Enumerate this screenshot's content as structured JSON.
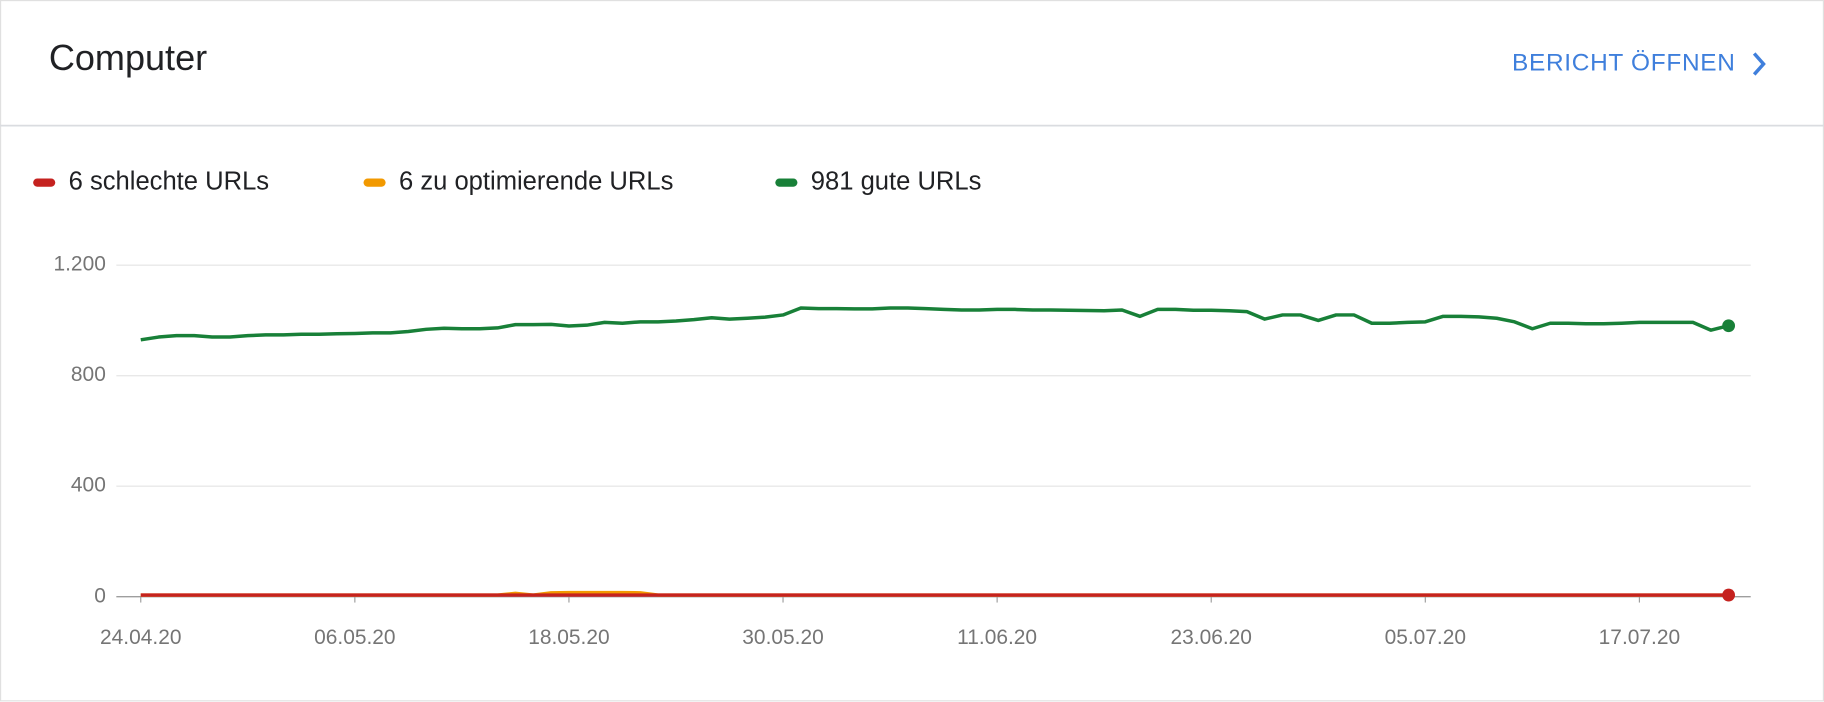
{
  "header": {
    "title": "Computer",
    "link": "BERICHT ÖFFNEN"
  },
  "chart_data": {
    "type": "line",
    "x": [
      "2020-04-24",
      "2020-04-25",
      "2020-04-26",
      "2020-04-27",
      "2020-04-28",
      "2020-04-29",
      "2020-04-30",
      "2020-05-01",
      "2020-05-02",
      "2020-05-03",
      "2020-05-04",
      "2020-05-05",
      "2020-05-06",
      "2020-05-07",
      "2020-05-08",
      "2020-05-09",
      "2020-05-10",
      "2020-05-11",
      "2020-05-12",
      "2020-05-13",
      "2020-05-14",
      "2020-05-15",
      "2020-05-16",
      "2020-05-17",
      "2020-05-18",
      "2020-05-19",
      "2020-05-20",
      "2020-05-21",
      "2020-05-22",
      "2020-05-23",
      "2020-05-24",
      "2020-05-25",
      "2020-05-26",
      "2020-05-27",
      "2020-05-28",
      "2020-05-29",
      "2020-05-30",
      "2020-05-31",
      "2020-06-01",
      "2020-06-02",
      "2020-06-03",
      "2020-06-04",
      "2020-06-05",
      "2020-06-06",
      "2020-06-07",
      "2020-06-08",
      "2020-06-09",
      "2020-06-10",
      "2020-06-11",
      "2020-06-12",
      "2020-06-13",
      "2020-06-14",
      "2020-06-15",
      "2020-06-16",
      "2020-06-17",
      "2020-06-18",
      "2020-06-19",
      "2020-06-20",
      "2020-06-21",
      "2020-06-22",
      "2020-06-23",
      "2020-06-24",
      "2020-06-25",
      "2020-06-26",
      "2020-06-27",
      "2020-06-28",
      "2020-06-29",
      "2020-06-30",
      "2020-07-01",
      "2020-07-02",
      "2020-07-03",
      "2020-07-04",
      "2020-07-05",
      "2020-07-06",
      "2020-07-07",
      "2020-07-08",
      "2020-07-09",
      "2020-07-10",
      "2020-07-11",
      "2020-07-12",
      "2020-07-13",
      "2020-07-14",
      "2020-07-15",
      "2020-07-16",
      "2020-07-17",
      "2020-07-18",
      "2020-07-19",
      "2020-07-20",
      "2020-07-21",
      "2020-07-22"
    ],
    "series": [
      {
        "name": "6 schlechte URLs",
        "color": "#c5221f",
        "values": [
          6,
          6,
          6,
          6,
          6,
          6,
          6,
          6,
          6,
          6,
          6,
          6,
          6,
          6,
          6,
          6,
          6,
          6,
          6,
          6,
          6,
          6,
          6,
          6,
          6,
          6,
          6,
          6,
          6,
          6,
          6,
          6,
          6,
          6,
          6,
          6,
          6,
          6,
          6,
          6,
          6,
          6,
          6,
          6,
          6,
          6,
          6,
          6,
          6,
          6,
          6,
          6,
          6,
          6,
          6,
          6,
          6,
          6,
          6,
          6,
          6,
          6,
          6,
          6,
          6,
          6,
          6,
          6,
          6,
          6,
          6,
          6,
          6,
          6,
          6,
          6,
          6,
          6,
          6,
          6,
          6,
          6,
          6,
          6,
          6,
          6,
          6,
          6,
          6,
          6
        ]
      },
      {
        "name": "6 zu optimierende URLs",
        "color": "#f29900",
        "values": [
          6,
          6,
          6,
          6,
          6,
          6,
          6,
          6,
          6,
          6,
          6,
          6,
          6,
          6,
          6,
          6,
          6,
          6,
          6,
          6,
          6,
          12,
          6,
          14,
          15,
          15,
          15,
          15,
          14,
          6,
          6,
          6,
          6,
          6,
          6,
          6,
          6,
          6,
          6,
          6,
          6,
          6,
          6,
          6,
          6,
          6,
          6,
          6,
          6,
          6,
          6,
          6,
          6,
          6,
          6,
          6,
          6,
          6,
          6,
          6,
          6,
          6,
          6,
          6,
          6,
          6,
          6,
          6,
          6,
          6,
          6,
          6,
          6,
          6,
          6,
          6,
          6,
          6,
          6,
          6,
          6,
          6,
          6,
          6,
          6,
          6,
          6,
          6,
          6,
          6
        ]
      },
      {
        "name": "981 gute URLs",
        "color": "#188038",
        "values": [
          930,
          940,
          945,
          945,
          940,
          940,
          945,
          948,
          948,
          950,
          950,
          952,
          953,
          955,
          955,
          960,
          968,
          972,
          970,
          970,
          973,
          985,
          985,
          986,
          980,
          983,
          993,
          990,
          995,
          995,
          998,
          1003,
          1010,
          1005,
          1008,
          1012,
          1020,
          1045,
          1043,
          1043,
          1042,
          1042,
          1045,
          1045,
          1043,
          1040,
          1038,
          1038,
          1040,
          1040,
          1038,
          1038,
          1037,
          1036,
          1035,
          1038,
          1015,
          1040,
          1040,
          1037,
          1037,
          1035,
          1032,
          1005,
          1020,
          1020,
          1000,
          1020,
          1020,
          990,
          990,
          993,
          995,
          1015,
          1015,
          1013,
          1008,
          995,
          970,
          990,
          990,
          988,
          988,
          990,
          993,
          993,
          993,
          993,
          965,
          981
        ]
      }
    ],
    "xticks": [
      {
        "value": "2020-04-24",
        "label": "24.04.20"
      },
      {
        "value": "2020-05-06",
        "label": "06.05.20"
      },
      {
        "value": "2020-05-18",
        "label": "18.05.20"
      },
      {
        "value": "2020-05-30",
        "label": "30.05.20"
      },
      {
        "value": "2020-06-11",
        "label": "11.06.20"
      },
      {
        "value": "2020-06-23",
        "label": "23.06.20"
      },
      {
        "value": "2020-07-05",
        "label": "05.07.20"
      },
      {
        "value": "2020-07-17",
        "label": "17.07.20"
      }
    ],
    "ylim": [
      0,
      1200
    ],
    "yticks": [
      0,
      400,
      800,
      {
        "value": 1200,
        "label": "1.200"
      }
    ],
    "grid": true
  }
}
